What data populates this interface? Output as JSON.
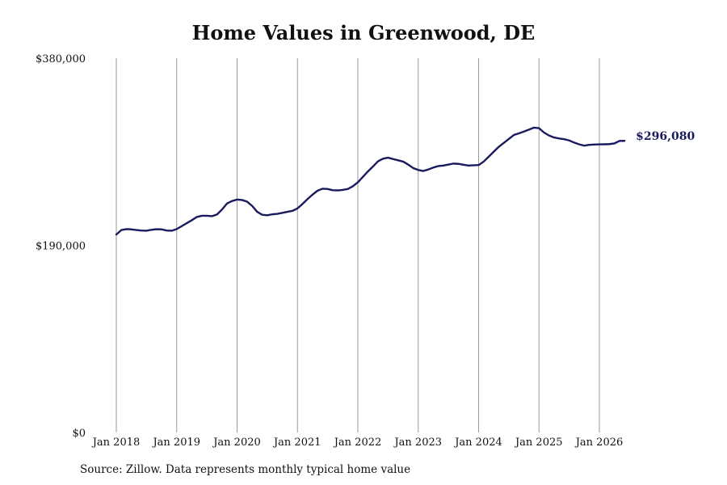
{
  "chart_data": {
    "type": "line",
    "title": "Home Values in Greenwood, DE",
    "source": "Source: Zillow. Data represents monthly typical home value",
    "ylim": [
      0,
      380000
    ],
    "xlim": [
      "2018-01",
      "2026-07"
    ],
    "y_ticks": [
      {
        "value": 0,
        "label": "$0"
      },
      {
        "value": 190000,
        "label": "$190,000"
      },
      {
        "value": 380000,
        "label": "$380,000"
      }
    ],
    "x_ticks": [
      {
        "date": "2018-01",
        "label": "Jan 2018"
      },
      {
        "date": "2019-01",
        "label": "Jan 2019"
      },
      {
        "date": "2020-01",
        "label": "Jan 2020"
      },
      {
        "date": "2021-01",
        "label": "Jan 2021"
      },
      {
        "date": "2022-01",
        "label": "Jan 2022"
      },
      {
        "date": "2023-01",
        "label": "Jan 2023"
      },
      {
        "date": "2024-01",
        "label": "Jan 2024"
      },
      {
        "date": "2025-01",
        "label": "Jan 2025"
      },
      {
        "date": "2026-01",
        "label": "Jan 2026"
      }
    ],
    "grid": "vertical",
    "line_color": "#1a1a5e",
    "end_label": "$296,080",
    "series": [
      {
        "x": [
          "2018-01",
          "2018-02",
          "2018-03",
          "2018-04",
          "2018-05",
          "2018-06",
          "2018-07",
          "2018-08",
          "2018-09",
          "2018-10",
          "2018-11",
          "2018-12",
          "2019-01",
          "2019-02",
          "2019-03",
          "2019-04",
          "2019-05",
          "2019-06",
          "2019-07",
          "2019-08",
          "2019-09",
          "2019-10",
          "2019-11",
          "2019-12",
          "2020-01",
          "2020-02",
          "2020-03",
          "2020-04",
          "2020-05",
          "2020-06",
          "2020-07",
          "2020-08",
          "2020-09",
          "2020-10",
          "2020-11",
          "2020-12",
          "2021-01",
          "2021-02",
          "2021-03",
          "2021-04",
          "2021-05",
          "2021-06",
          "2021-07",
          "2021-08",
          "2021-09",
          "2021-10",
          "2021-11",
          "2021-12",
          "2022-01",
          "2022-02",
          "2022-03",
          "2022-04",
          "2022-05",
          "2022-06",
          "2022-07",
          "2022-08",
          "2022-09",
          "2022-10",
          "2022-11",
          "2022-12",
          "2023-01",
          "2023-02",
          "2023-03",
          "2023-04",
          "2023-05",
          "2023-06",
          "2023-07",
          "2023-08",
          "2023-09",
          "2023-10",
          "2023-11",
          "2023-12",
          "2024-01",
          "2024-02",
          "2024-03",
          "2024-04",
          "2024-05",
          "2024-06",
          "2024-07",
          "2024-08",
          "2024-09",
          "2024-10",
          "2024-11",
          "2024-12",
          "2025-01",
          "2025-02",
          "2025-03",
          "2025-04",
          "2025-05",
          "2025-06",
          "2025-07",
          "2025-08",
          "2025-09",
          "2025-10",
          "2025-11",
          "2025-12",
          "2026-01",
          "2026-02",
          "2026-03",
          "2026-04",
          "2026-05",
          "2026-06"
        ],
        "values": [
          201000,
          205500,
          206500,
          206200,
          205500,
          205000,
          204800,
          205800,
          206400,
          206200,
          205000,
          204800,
          206500,
          209500,
          212500,
          215500,
          218800,
          220000,
          220000,
          219600,
          221300,
          226300,
          232500,
          235000,
          236500,
          236000,
          234300,
          230000,
          224000,
          221000,
          220500,
          221500,
          222000,
          223000,
          224000,
          225000,
          227500,
          232000,
          237000,
          241500,
          245500,
          247500,
          247200,
          246000,
          245800,
          246300,
          247200,
          250000,
          254000,
          259500,
          265000,
          270000,
          275300,
          278000,
          279000,
          277600,
          276300,
          275000,
          272000,
          268500,
          266500,
          265500,
          267000,
          269000,
          270500,
          271000,
          272000,
          273000,
          272700,
          271800,
          271000,
          271300,
          271500,
          275000,
          280000,
          285000,
          290000,
          294000,
          298000,
          302000,
          303700,
          305500,
          307500,
          309500,
          309000,
          304500,
          301500,
          299500,
          298500,
          297800,
          296500,
          294300,
          292500,
          291200,
          292000,
          292300,
          292500,
          292600,
          292800,
          293500,
          296000,
          296080
        ]
      }
    ]
  }
}
